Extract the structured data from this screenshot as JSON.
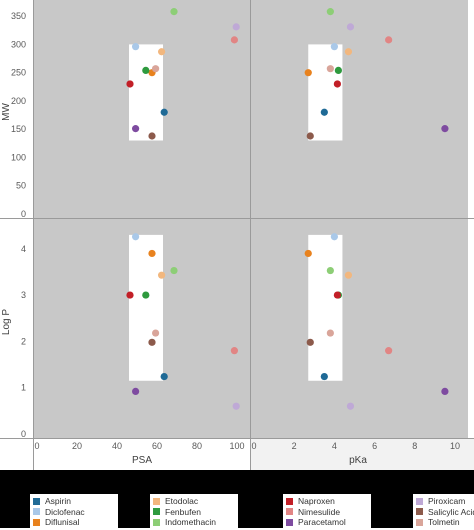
{
  "chart_data": {
    "type": "scatter",
    "layout": "2x2 scatter matrix",
    "x_variables": [
      {
        "label": "PSA",
        "ticks": [
          0,
          20,
          40,
          60,
          80,
          100
        ],
        "range": [
          0,
          105
        ]
      },
      {
        "label": "pKa",
        "ticks": [
          0,
          2,
          4,
          6,
          8,
          10
        ],
        "range": [
          0,
          10.5
        ]
      }
    ],
    "y_variables": [
      {
        "label": "MW",
        "ticks": [
          0,
          50,
          100,
          150,
          200,
          250,
          300,
          350
        ],
        "range": [
          0,
          375
        ]
      },
      {
        "label": "Log P",
        "ticks": [
          0,
          1,
          2,
          3,
          4
        ],
        "range": [
          0,
          4.6
        ]
      }
    ],
    "highlight_ranges": {
      "PSA": [
        46,
        63
      ],
      "pKa": [
        2.7,
        4.4
      ],
      "MW": [
        130,
        300
      ],
      "Log P": [
        1.15,
        4.3
      ]
    },
    "series": [
      {
        "name": "Aspirin",
        "color": "#1F6A96",
        "PSA": 63.6,
        "pKa": 3.5,
        "MW": 180,
        "Log P": 1.24
      },
      {
        "name": "Diclofenac",
        "color": "#A9C8E8",
        "PSA": 49.3,
        "pKa": 4.0,
        "MW": 296,
        "Log P": 4.26
      },
      {
        "name": "Diflunisal",
        "color": "#E8821E",
        "PSA": 57.5,
        "pKa": 2.7,
        "MW": 250,
        "Log P": 3.9
      },
      {
        "name": "Etodolac",
        "color": "#F2B77E",
        "PSA": 62.3,
        "pKa": 4.7,
        "MW": 287,
        "Log P": 3.43
      },
      {
        "name": "Fenbufen",
        "color": "#2E9A3E",
        "PSA": 54.4,
        "pKa": 4.2,
        "MW": 254,
        "Log P": 3.0
      },
      {
        "name": "Indomethacin",
        "color": "#8DCE76",
        "PSA": 68.5,
        "pKa": 3.8,
        "MW": 358,
        "Log P": 3.53
      },
      {
        "name": "Naproxen",
        "color": "#C21F27",
        "PSA": 46.5,
        "pKa": 4.15,
        "MW": 230,
        "Log P": 3.0
      },
      {
        "name": "Nimesulide",
        "color": "#E18584",
        "PSA": 98.7,
        "pKa": 6.7,
        "MW": 308,
        "Log P": 1.8
      },
      {
        "name": "Paracetamol",
        "color": "#7E4BA0",
        "PSA": 49.3,
        "pKa": 9.5,
        "MW": 151,
        "Log P": 0.92
      },
      {
        "name": "Piroxicam",
        "color": "#BFA9D6",
        "PSA": 99.6,
        "pKa": 4.8,
        "MW": 331,
        "Log P": 0.6
      },
      {
        "name": "Salicylic Acid",
        "color": "#8C5A4B",
        "PSA": 57.5,
        "pKa": 2.8,
        "MW": 138,
        "Log P": 1.98
      },
      {
        "name": "Tolmetin",
        "color": "#D9A59A",
        "PSA": 59.3,
        "pKa": 3.8,
        "MW": 257,
        "Log P": 2.18
      }
    ],
    "legend_position": "bottom",
    "grid": true
  },
  "colors": {
    "panel_background": "#C8C8C8",
    "highlight": "#FFFFFF",
    "frame": "#9A9A9A"
  }
}
